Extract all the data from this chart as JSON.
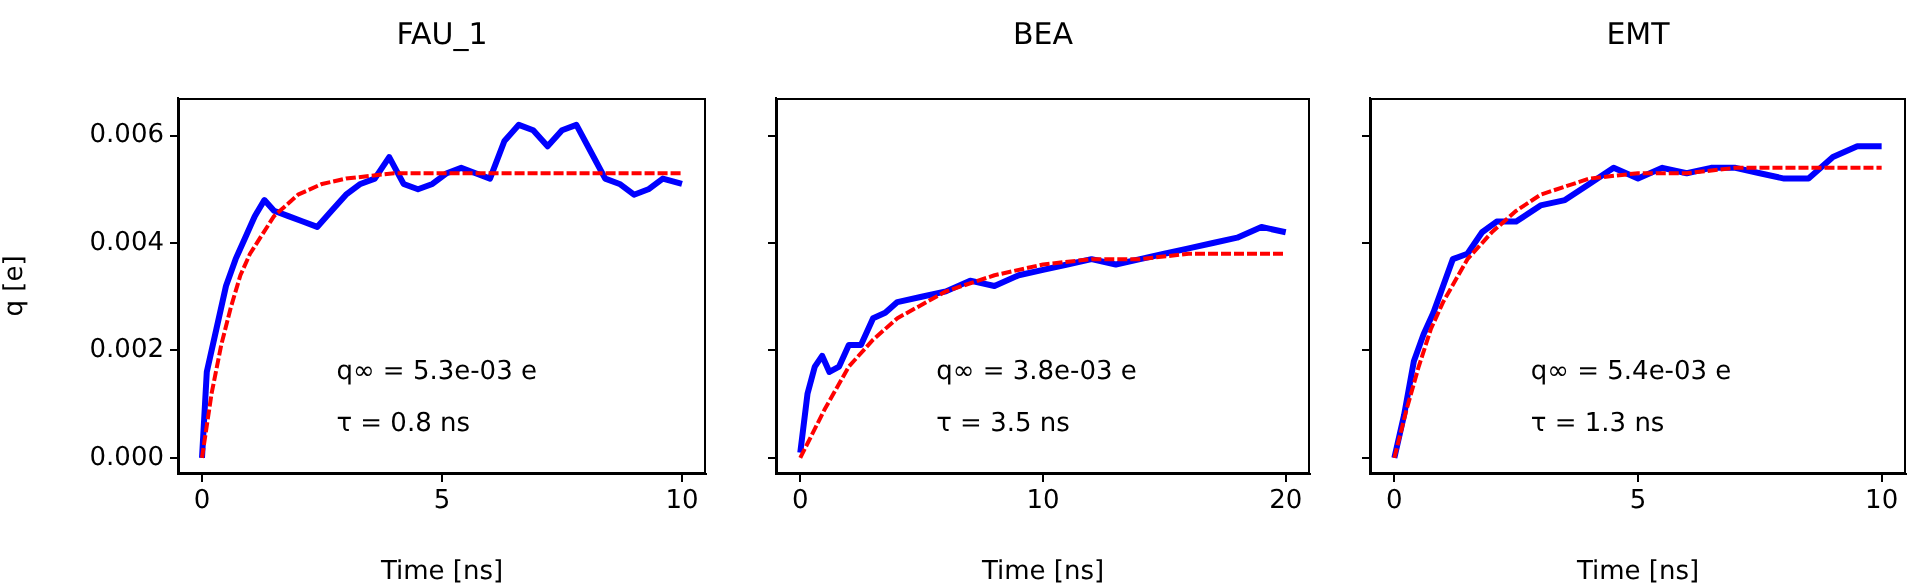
{
  "chart_data": [
    {
      "type": "line",
      "title": "FAU_1",
      "xlabel": "Time [ns]",
      "ylabel": "q [e]",
      "xlim": [
        -0.5,
        10.5
      ],
      "xticks": [
        0,
        5,
        10
      ],
      "ylim": [
        -0.0003,
        0.0067
      ],
      "yticks": [
        {
          "value": 0,
          "label": "0.000"
        },
        {
          "value": 0.002,
          "label": "0.002"
        },
        {
          "value": 0.004,
          "label": "0.004"
        },
        {
          "value": 0.006,
          "label": "0.006"
        }
      ],
      "grid": false,
      "marker": "none",
      "annotations": [
        "q∞ = 5.3e-03 e",
        "τ = 0.8 ns"
      ],
      "series": [
        {
          "color": "#0000ff",
          "line_style": "solid",
          "x": [
            0,
            0.1,
            0.3,
            0.5,
            0.7,
            0.9,
            1.1,
            1.3,
            1.5,
            1.8,
            2.1,
            2.4,
            2.7,
            3.0,
            3.3,
            3.6,
            3.9,
            4.2,
            4.5,
            4.8,
            5.1,
            5.4,
            5.7,
            6.0,
            6.3,
            6.6,
            6.9,
            7.2,
            7.5,
            7.8,
            8.1,
            8.4,
            8.7,
            9.0,
            9.3,
            9.6,
            10
          ],
          "values": [
            0,
            0.0016,
            0.0024,
            0.0032,
            0.0037,
            0.0041,
            0.0045,
            0.0048,
            0.0046,
            0.0045,
            0.0044,
            0.0043,
            0.0046,
            0.0049,
            0.0051,
            0.0052,
            0.0056,
            0.0051,
            0.005,
            0.0051,
            0.0053,
            0.0054,
            0.0053,
            0.0052,
            0.0059,
            0.0062,
            0.0061,
            0.0058,
            0.0061,
            0.0062,
            0.0057,
            0.0052,
            0.0051,
            0.0049,
            0.005,
            0.0052,
            0.0051
          ]
        },
        {
          "color": "#ff0000",
          "line_style": "dashed",
          "x": [
            0,
            0.2,
            0.4,
            0.6,
            0.8,
            1,
            1.5,
            2,
            2.5,
            3,
            4,
            5,
            6,
            7,
            8,
            9,
            10
          ],
          "values": [
            0,
            0.0012,
            0.0021,
            0.0028,
            0.0034,
            0.0038,
            0.0045,
            0.0049,
            0.0051,
            0.0052,
            0.0053,
            0.0053,
            0.0053,
            0.0053,
            0.0053,
            0.0053,
            0.0053
          ]
        }
      ]
    },
    {
      "type": "line",
      "title": "BEA",
      "xlabel": "Time [ns]",
      "xlim": [
        -1,
        21
      ],
      "xticks": [
        0,
        10,
        20
      ],
      "ylim": [
        -0.0003,
        0.0067
      ],
      "yticks": [
        {
          "value": 0,
          "label": null
        },
        {
          "value": 0.002,
          "label": null
        },
        {
          "value": 0.004,
          "label": null
        },
        {
          "value": 0.006,
          "label": null
        }
      ],
      "tick_labels": "x",
      "grid": false,
      "marker": "none",
      "annotations": [
        "q∞ = 3.8e-03 e",
        "τ = 3.5 ns"
      ],
      "series": [
        {
          "color": "#0000ff",
          "line_style": "solid",
          "x": [
            0,
            0.3,
            0.6,
            0.9,
            1.2,
            1.6,
            2,
            2.5,
            3,
            3.5,
            4,
            5,
            6,
            7,
            8,
            9,
            10,
            11,
            12,
            13,
            14,
            15,
            16,
            17,
            18,
            19,
            20
          ],
          "values": [
            0.0001,
            0.0012,
            0.0017,
            0.0019,
            0.0016,
            0.0017,
            0.0021,
            0.0021,
            0.0026,
            0.0027,
            0.0029,
            0.003,
            0.0031,
            0.0033,
            0.0032,
            0.0034,
            0.0035,
            0.0036,
            0.0037,
            0.0036,
            0.0037,
            0.0038,
            0.0039,
            0.004,
            0.0041,
            0.0043,
            0.0042
          ]
        },
        {
          "color": "#ff0000",
          "line_style": "dashed",
          "x": [
            0,
            1,
            2,
            3,
            4,
            6,
            8,
            10,
            12,
            14,
            16,
            18,
            20
          ],
          "values": [
            0,
            0.0009,
            0.0017,
            0.0022,
            0.0026,
            0.0031,
            0.0034,
            0.0036,
            0.0037,
            0.0037,
            0.0038,
            0.0038,
            0.0038
          ]
        }
      ]
    },
    {
      "type": "line",
      "title": "EMT",
      "xlabel": "Time [ns]",
      "xlim": [
        -0.5,
        10.5
      ],
      "xticks": [
        0,
        5,
        10
      ],
      "ylim": [
        -0.0003,
        0.0067
      ],
      "yticks": [
        {
          "value": 0,
          "label": null
        },
        {
          "value": 0.002,
          "label": null
        },
        {
          "value": 0.004,
          "label": null
        },
        {
          "value": 0.006,
          "label": null
        }
      ],
      "tick_labels": "x",
      "grid": false,
      "marker": "none",
      "annotations": [
        "q∞ = 5.4e-03 e",
        "τ = 1.3 ns"
      ],
      "series": [
        {
          "color": "#0000ff",
          "line_style": "solid",
          "x": [
            0,
            0.2,
            0.4,
            0.6,
            0.8,
            1.0,
            1.2,
            1.5,
            1.8,
            2.1,
            2.5,
            3,
            3.5,
            4,
            4.5,
            5,
            5.5,
            6,
            6.5,
            7,
            7.5,
            8,
            8.5,
            9,
            9.5,
            10
          ],
          "values": [
            0,
            0.0008,
            0.0018,
            0.0023,
            0.0027,
            0.0032,
            0.0037,
            0.0038,
            0.0042,
            0.0044,
            0.0044,
            0.0047,
            0.0048,
            0.0051,
            0.0054,
            0.0052,
            0.0054,
            0.0053,
            0.0054,
            0.0054,
            0.0053,
            0.0052,
            0.0052,
            0.0056,
            0.0058,
            0.0058
          ]
        },
        {
          "color": "#ff0000",
          "line_style": "dashed",
          "x": [
            0,
            0.25,
            0.5,
            0.75,
            1,
            1.5,
            2,
            2.5,
            3,
            4,
            5,
            6,
            7,
            8,
            9,
            10
          ],
          "values": [
            0,
            0.0009,
            0.0017,
            0.0024,
            0.0029,
            0.0037,
            0.0042,
            0.0046,
            0.0049,
            0.0052,
            0.0053,
            0.0053,
            0.0054,
            0.0054,
            0.0054,
            0.0054
          ]
        }
      ]
    }
  ]
}
